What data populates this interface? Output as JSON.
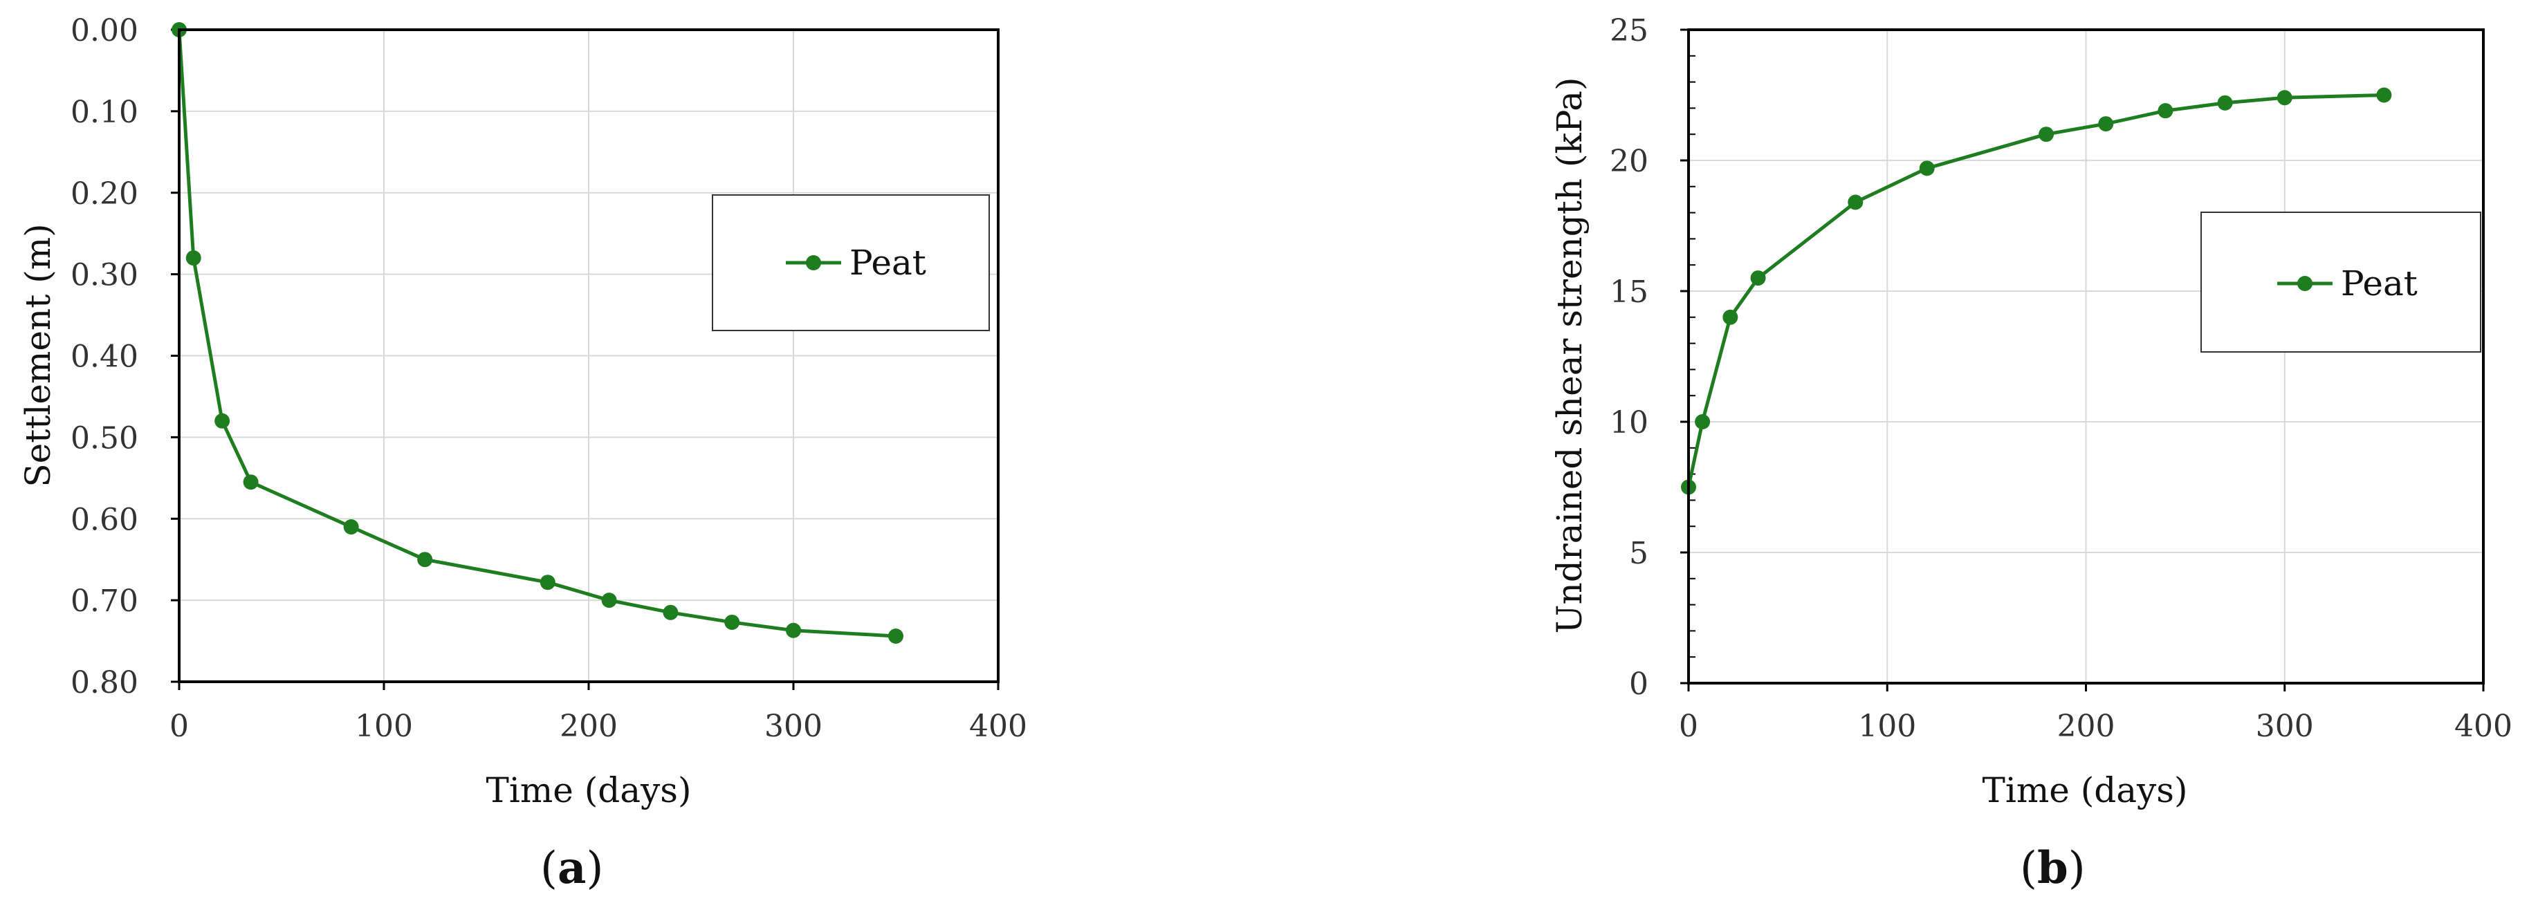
{
  "colors": {
    "series": "#1e7d1e",
    "grid": "#d9d9d9",
    "frame": "#000000"
  },
  "chart_data": [
    {
      "type": "line",
      "panel_label": "a",
      "xlabel": "Time (days)",
      "ylabel": "Settlement (m)",
      "xlim": [
        0,
        400
      ],
      "ylim": [
        0.8,
        0.0
      ],
      "y_inverted": true,
      "grid": true,
      "x_ticks": [
        "0",
        "100",
        "200",
        "300",
        "400"
      ],
      "y_ticks": [
        "0.00",
        "0.10",
        "0.20",
        "0.30",
        "0.40",
        "0.50",
        "0.60",
        "0.70",
        "0.80"
      ],
      "legend_position": "right",
      "series": [
        {
          "name": "Peat",
          "x": [
            0,
            7,
            21,
            35,
            84,
            120,
            180,
            210,
            240,
            270,
            300,
            350
          ],
          "y": [
            0.0,
            0.28,
            0.48,
            0.555,
            0.61,
            0.65,
            0.678,
            0.7,
            0.715,
            0.727,
            0.737,
            0.744
          ]
        }
      ]
    },
    {
      "type": "line",
      "panel_label": "b",
      "xlabel": "Time (days)",
      "ylabel": "Undrained shear strength  (kPa)",
      "xlim": [
        0,
        400
      ],
      "ylim": [
        0,
        25
      ],
      "grid": true,
      "x_ticks": [
        "0",
        "100",
        "200",
        "300",
        "400"
      ],
      "y_ticks": [
        "0",
        "5",
        "10",
        "15",
        "20",
        "25"
      ],
      "legend_position": "right",
      "series": [
        {
          "name": "Peat",
          "x": [
            0,
            7,
            21,
            35,
            84,
            120,
            180,
            210,
            240,
            270,
            300,
            350
          ],
          "y": [
            7.5,
            10.0,
            14.0,
            15.5,
            18.4,
            19.7,
            21.0,
            21.4,
            21.9,
            22.2,
            22.4,
            22.5
          ]
        }
      ]
    }
  ]
}
